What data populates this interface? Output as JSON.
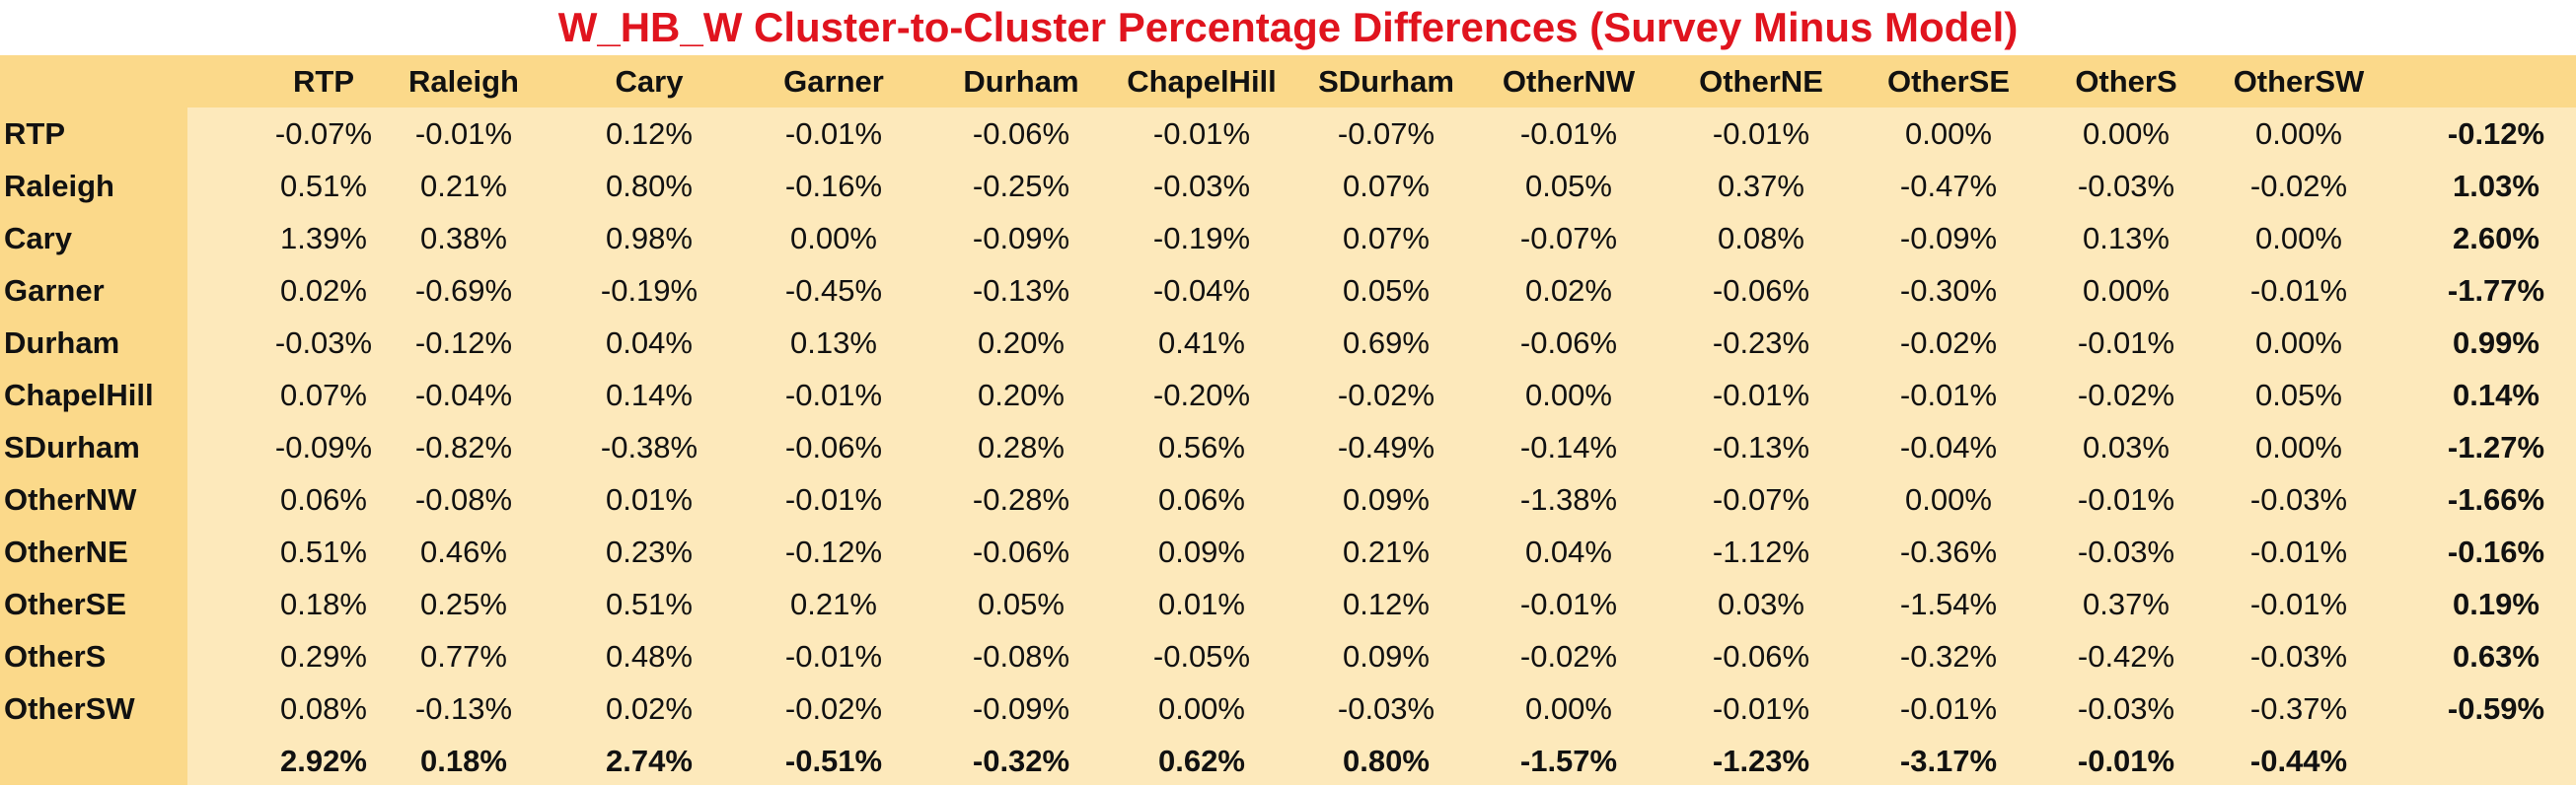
{
  "title": "W_HB_W Cluster-to-Cluster Percentage Differences (Survey Minus Model)",
  "colors": {
    "title": "#e0141e",
    "header_band": "#fbd98a",
    "body": "#fde9bb"
  },
  "chart_data": {
    "type": "table",
    "title": "W_HB_W Cluster-to-Cluster Percentage Differences (Survey Minus Model)",
    "columns": [
      "RTP",
      "Raleigh",
      "Cary",
      "Garner",
      "Durham",
      "ChapelHill",
      "SDurham",
      "OtherNW",
      "OtherNE",
      "OtherSE",
      "OtherS",
      "OtherSW"
    ],
    "rows": [
      {
        "label": "RTP",
        "values": [
          "-0.07%",
          "-0.01%",
          "0.12%",
          "-0.01%",
          "-0.06%",
          "-0.01%",
          "-0.07%",
          "-0.01%",
          "-0.01%",
          "0.00%",
          "0.00%",
          "0.00%"
        ],
        "total": "-0.12%"
      },
      {
        "label": "Raleigh",
        "values": [
          "0.51%",
          "0.21%",
          "0.80%",
          "-0.16%",
          "-0.25%",
          "-0.03%",
          "0.07%",
          "0.05%",
          "0.37%",
          "-0.47%",
          "-0.03%",
          "-0.02%"
        ],
        "total": "1.03%"
      },
      {
        "label": "Cary",
        "values": [
          "1.39%",
          "0.38%",
          "0.98%",
          "0.00%",
          "-0.09%",
          "-0.19%",
          "0.07%",
          "-0.07%",
          "0.08%",
          "-0.09%",
          "0.13%",
          "0.00%"
        ],
        "total": "2.60%"
      },
      {
        "label": "Garner",
        "values": [
          "0.02%",
          "-0.69%",
          "-0.19%",
          "-0.45%",
          "-0.13%",
          "-0.04%",
          "0.05%",
          "0.02%",
          "-0.06%",
          "-0.30%",
          "0.00%",
          "-0.01%"
        ],
        "total": "-1.77%"
      },
      {
        "label": "Durham",
        "values": [
          "-0.03%",
          "-0.12%",
          "0.04%",
          "0.13%",
          "0.20%",
          "0.41%",
          "0.69%",
          "-0.06%",
          "-0.23%",
          "-0.02%",
          "-0.01%",
          "0.00%"
        ],
        "total": "0.99%"
      },
      {
        "label": "ChapelHill",
        "values": [
          "0.07%",
          "-0.04%",
          "0.14%",
          "-0.01%",
          "0.20%",
          "-0.20%",
          "-0.02%",
          "0.00%",
          "-0.01%",
          "-0.01%",
          "-0.02%",
          "0.05%"
        ],
        "total": "0.14%"
      },
      {
        "label": "SDurham",
        "values": [
          "-0.09%",
          "-0.82%",
          "-0.38%",
          "-0.06%",
          "0.28%",
          "0.56%",
          "-0.49%",
          "-0.14%",
          "-0.13%",
          "-0.04%",
          "0.03%",
          "0.00%"
        ],
        "total": "-1.27%"
      },
      {
        "label": "OtherNW",
        "values": [
          "0.06%",
          "-0.08%",
          "0.01%",
          "-0.01%",
          "-0.28%",
          "0.06%",
          "0.09%",
          "-1.38%",
          "-0.07%",
          "0.00%",
          "-0.01%",
          "-0.03%"
        ],
        "total": "-1.66%"
      },
      {
        "label": "OtherNE",
        "values": [
          "0.51%",
          "0.46%",
          "0.23%",
          "-0.12%",
          "-0.06%",
          "0.09%",
          "0.21%",
          "0.04%",
          "-1.12%",
          "-0.36%",
          "-0.03%",
          "-0.01%"
        ],
        "total": "-0.16%"
      },
      {
        "label": "OtherSE",
        "values": [
          "0.18%",
          "0.25%",
          "0.51%",
          "0.21%",
          "0.05%",
          "0.01%",
          "0.12%",
          "-0.01%",
          "0.03%",
          "-1.54%",
          "0.37%",
          "-0.01%"
        ],
        "total": "0.19%"
      },
      {
        "label": "OtherS",
        "values": [
          "0.29%",
          "0.77%",
          "0.48%",
          "-0.01%",
          "-0.08%",
          "-0.05%",
          "0.09%",
          "-0.02%",
          "-0.06%",
          "-0.32%",
          "-0.42%",
          "-0.03%"
        ],
        "total": "0.63%"
      },
      {
        "label": "OtherSW",
        "values": [
          "0.08%",
          "-0.13%",
          "0.02%",
          "-0.02%",
          "-0.09%",
          "0.00%",
          "-0.03%",
          "0.00%",
          "-0.01%",
          "-0.01%",
          "-0.03%",
          "-0.37%"
        ],
        "total": "-0.59%"
      }
    ],
    "column_totals": [
      "2.92%",
      "0.18%",
      "2.74%",
      "-0.51%",
      "-0.32%",
      "0.62%",
      "0.80%",
      "-1.57%",
      "-1.23%",
      "-3.17%",
      "-0.01%",
      "-0.44%"
    ]
  }
}
